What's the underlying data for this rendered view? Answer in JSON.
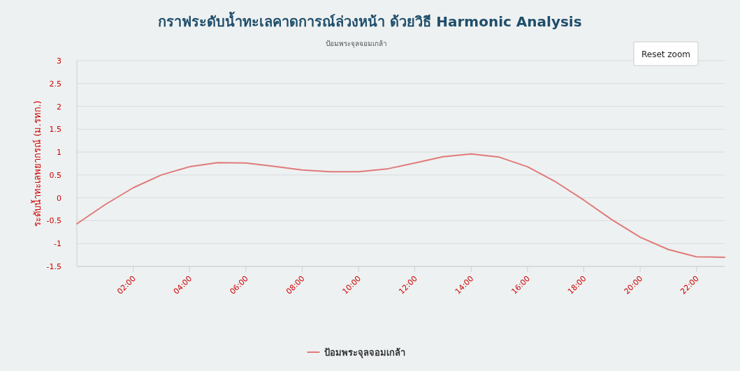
{
  "chart_data": {
    "type": "line",
    "title": "กราฟระดับน้ำทะเลคาดการณ์ล่วงหน้า ด้วยวิธี Harmonic Analysis",
    "subtitle": "ป้อมพระจุลจอมเกล้า",
    "ylabel": "ระดับน้ำทะเลพยากรณ์ (ม.รทก.)",
    "annotations": [
      "Reset zoom"
    ],
    "x": [
      0,
      1,
      2,
      3,
      4,
      5,
      6,
      7,
      8,
      9,
      10,
      11,
      12,
      13,
      14,
      15,
      16,
      17,
      18,
      19,
      20,
      21,
      22,
      23
    ],
    "series": [
      {
        "name": "ป้อมพระจุลจอมเกล้า",
        "color": "#e07a7a",
        "values": [
          -0.57,
          -0.15,
          0.22,
          0.5,
          0.68,
          0.77,
          0.76,
          0.69,
          0.61,
          0.57,
          0.57,
          0.63,
          0.76,
          0.9,
          0.96,
          0.89,
          0.68,
          0.35,
          -0.05,
          -0.48,
          -0.86,
          -1.13,
          -1.29,
          -1.3
        ]
      }
    ],
    "xlim": [
      0,
      23
    ],
    "xticks": [
      {
        "value": 2,
        "label": "02:00"
      },
      {
        "value": 4,
        "label": "04:00"
      },
      {
        "value": 6,
        "label": "06:00"
      },
      {
        "value": 8,
        "label": "08:00"
      },
      {
        "value": 10,
        "label": "10:00"
      },
      {
        "value": 12,
        "label": "12:00"
      },
      {
        "value": 14,
        "label": "14:00"
      },
      {
        "value": 16,
        "label": "16:00"
      },
      {
        "value": 18,
        "label": "18:00"
      },
      {
        "value": 20,
        "label": "20:00"
      },
      {
        "value": 22,
        "label": "22:00"
      }
    ],
    "ylim": [
      -1.5,
      3
    ],
    "yticks": [
      -1.5,
      -1,
      -0.5,
      0,
      0.5,
      1,
      1.5,
      2,
      2.5,
      3
    ],
    "grid": "y",
    "legend": "bottom",
    "marker": "none",
    "line_style": "solid"
  }
}
